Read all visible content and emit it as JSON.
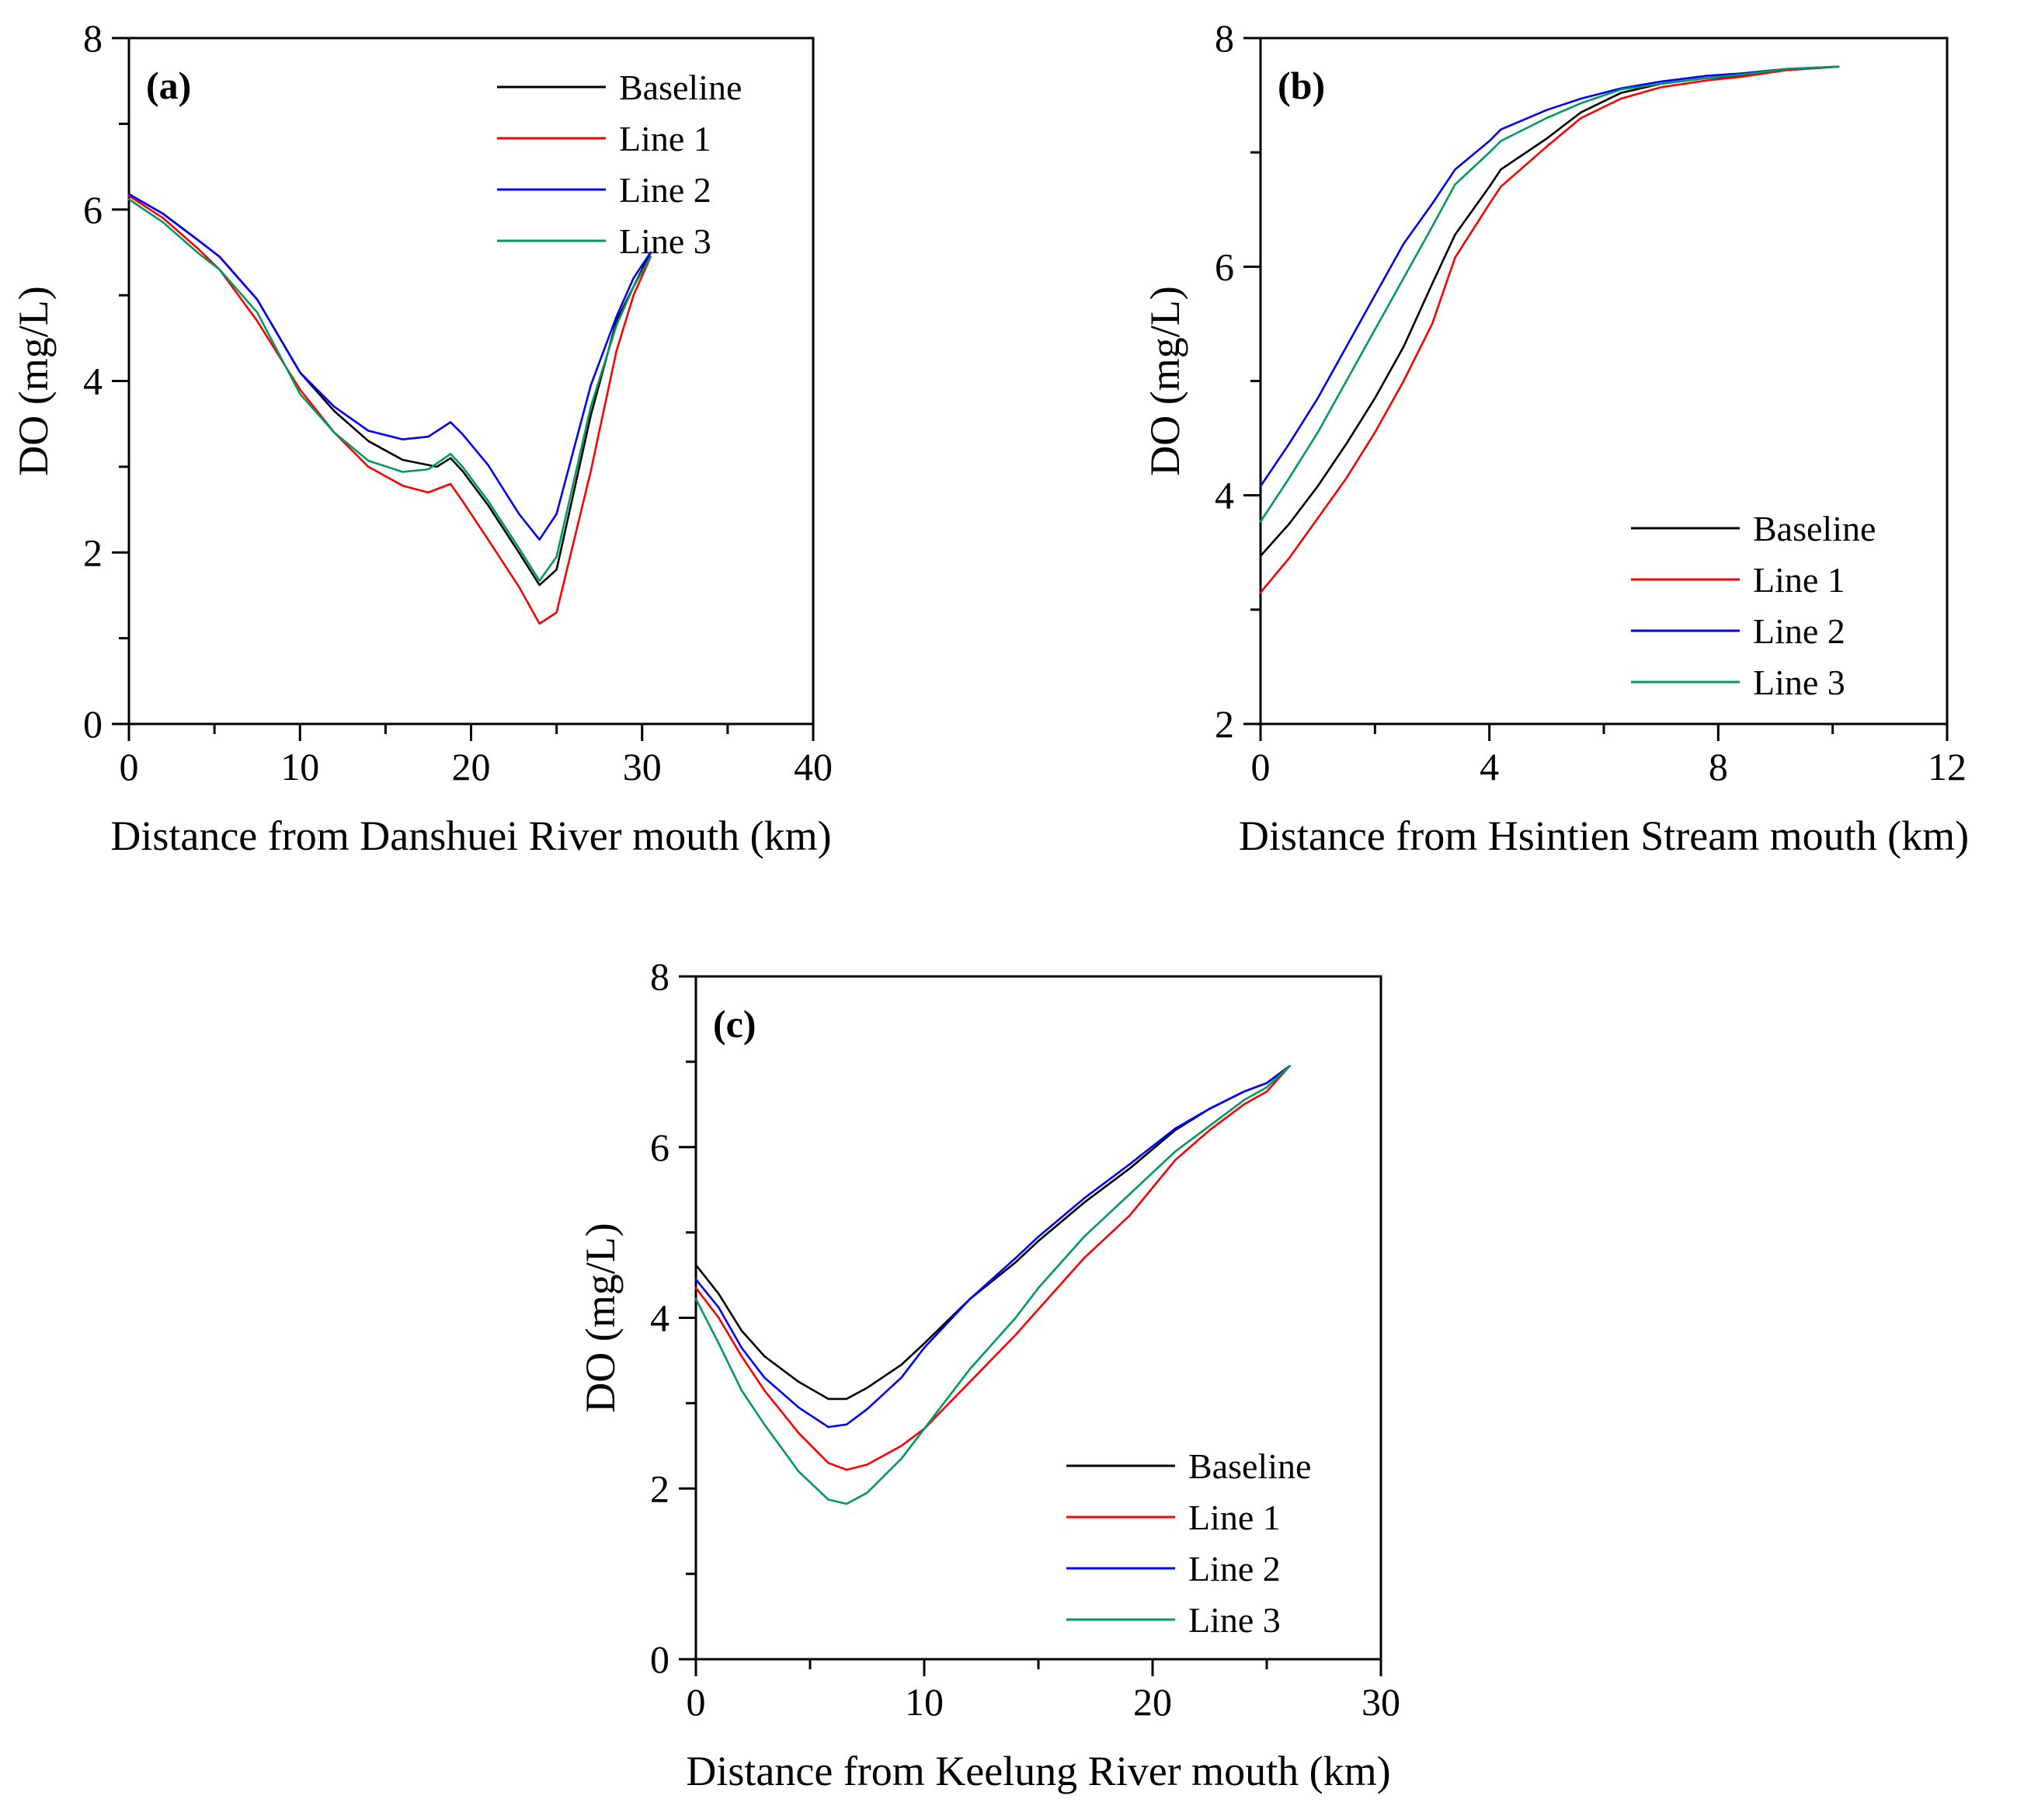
{
  "figure": {
    "legend_placement": "inside",
    "colors": {
      "Baseline": "#000000",
      "Line 1": "#ff0000",
      "Line 2": "#0000ff",
      "Line 3": "#009966"
    }
  },
  "chart_data": [
    {
      "type": "line",
      "panel_tag": "(a)",
      "xlabel": "Distance from Danshuei River mouth (km)",
      "ylabel": "DO (mg/L)",
      "xlim": [
        0,
        40
      ],
      "ylim": [
        0,
        8
      ],
      "x_ticks": [
        0,
        10,
        20,
        30,
        40
      ],
      "y_ticks": [
        0,
        2,
        4,
        6,
        8
      ],
      "x_ticks_minor": [
        5,
        15,
        25,
        35
      ],
      "y_ticks_minor": [
        1,
        3,
        5,
        7
      ],
      "legend_position": "top-right",
      "series": [
        {
          "name": "Baseline",
          "x": [
            0,
            2,
            4,
            5.3,
            7.5,
            10,
            12,
            14,
            16,
            18,
            18.8,
            19.5,
            21,
            22.8,
            24,
            25,
            27,
            28.5,
            29.5,
            30.5
          ],
          "y": [
            6.18,
            5.95,
            5.65,
            5.45,
            4.95,
            4.1,
            3.65,
            3.3,
            3.08,
            3.0,
            3.1,
            2.95,
            2.55,
            2.0,
            1.62,
            1.8,
            3.6,
            4.7,
            5.1,
            5.5
          ]
        },
        {
          "name": "Line 1",
          "x": [
            0,
            2,
            4,
            5.3,
            7.5,
            10,
            12,
            14,
            16,
            17.5,
            18.8,
            19.5,
            21,
            22.8,
            24,
            25,
            27,
            28.5,
            29.5,
            30.5
          ],
          "y": [
            6.16,
            5.9,
            5.55,
            5.3,
            4.7,
            3.9,
            3.4,
            3.0,
            2.78,
            2.7,
            2.8,
            2.6,
            2.15,
            1.6,
            1.17,
            1.3,
            2.95,
            4.35,
            5.0,
            5.45
          ]
        },
        {
          "name": "Line 2",
          "x": [
            0,
            2,
            4,
            5.3,
            7.5,
            10,
            12,
            14,
            16,
            17.5,
            18.8,
            19.5,
            21,
            22.8,
            24,
            25,
            27,
            28.5,
            29.5,
            30.5
          ],
          "y": [
            6.18,
            5.95,
            5.65,
            5.45,
            4.95,
            4.1,
            3.7,
            3.42,
            3.32,
            3.35,
            3.52,
            3.38,
            3.02,
            2.45,
            2.15,
            2.45,
            3.95,
            4.75,
            5.2,
            5.5
          ]
        },
        {
          "name": "Line 3",
          "x": [
            0,
            2,
            4,
            5.3,
            7.5,
            10,
            12,
            14,
            16,
            17.5,
            18.8,
            19.5,
            21,
            22.8,
            24,
            25,
            27,
            28.5,
            29.5,
            30.5
          ],
          "y": [
            6.12,
            5.85,
            5.5,
            5.3,
            4.8,
            3.85,
            3.4,
            3.07,
            2.94,
            2.97,
            3.15,
            3.0,
            2.6,
            2.05,
            1.67,
            1.95,
            3.7,
            4.65,
            5.1,
            5.45
          ]
        }
      ]
    },
    {
      "type": "line",
      "panel_tag": "(b)",
      "xlabel": "Distance from Hsintien Stream mouth (km)",
      "ylabel": "DO (mg/L)",
      "xlim": [
        0,
        12
      ],
      "ylim": [
        2,
        8
      ],
      "x_ticks": [
        0,
        4,
        8,
        12
      ],
      "y_ticks": [
        2,
        4,
        6,
        8
      ],
      "x_ticks_minor": [
        2,
        6,
        10
      ],
      "y_ticks_minor": [
        3,
        5,
        7
      ],
      "legend_position": "bottom-right",
      "series": [
        {
          "name": "Baseline",
          "x": [
            0,
            0.5,
            1,
            1.5,
            2,
            2.5,
            3,
            3.4,
            4,
            4.2,
            5,
            5.6,
            6.3,
            7,
            7.8,
            8.4,
            9.2,
            10.1
          ],
          "y": [
            3.47,
            3.75,
            4.08,
            4.45,
            4.85,
            5.3,
            5.85,
            6.28,
            6.7,
            6.85,
            7.12,
            7.35,
            7.52,
            7.6,
            7.65,
            7.67,
            7.72,
            7.75
          ]
        },
        {
          "name": "Line 1",
          "x": [
            0,
            0.5,
            1,
            1.5,
            2,
            2.5,
            3,
            3.4,
            4,
            4.2,
            5,
            5.6,
            6.3,
            7,
            7.8,
            8.4,
            9.2,
            10.1
          ],
          "y": [
            3.15,
            3.45,
            3.8,
            4.15,
            4.55,
            5.0,
            5.5,
            6.08,
            6.55,
            6.7,
            7.05,
            7.3,
            7.47,
            7.57,
            7.63,
            7.66,
            7.72,
            7.75
          ]
        },
        {
          "name": "Line 2",
          "x": [
            0,
            0.5,
            1,
            1.5,
            2,
            2.5,
            3,
            3.4,
            4,
            4.2,
            5,
            5.6,
            6.3,
            7,
            7.8,
            8.4,
            9.2,
            10.1
          ],
          "y": [
            4.08,
            4.45,
            4.85,
            5.3,
            5.75,
            6.2,
            6.55,
            6.85,
            7.1,
            7.2,
            7.37,
            7.47,
            7.56,
            7.62,
            7.67,
            7.69,
            7.73,
            7.75
          ]
        },
        {
          "name": "Line 3",
          "x": [
            0,
            0.5,
            1,
            1.5,
            2,
            2.5,
            3,
            3.4,
            4,
            4.2,
            5,
            5.6,
            6.3,
            7,
            7.8,
            8.4,
            9.2,
            10.1
          ],
          "y": [
            3.77,
            4.15,
            4.55,
            5.0,
            5.45,
            5.9,
            6.35,
            6.72,
            7.0,
            7.1,
            7.3,
            7.43,
            7.55,
            7.6,
            7.65,
            7.68,
            7.73,
            7.75
          ]
        }
      ]
    },
    {
      "type": "line",
      "panel_tag": "(c)",
      "xlabel": "Distance from Keelung River mouth (km)",
      "ylabel": "DO (mg/L)",
      "xlim": [
        0,
        30
      ],
      "ylim": [
        0,
        8
      ],
      "x_ticks": [
        0,
        10,
        20,
        30
      ],
      "y_ticks": [
        0,
        2,
        4,
        6,
        8
      ],
      "x_ticks_minor": [
        5,
        15,
        25
      ],
      "y_ticks_minor": [
        1,
        3,
        5,
        7
      ],
      "legend_position": "bottom-right",
      "series": [
        {
          "name": "Baseline",
          "x": [
            0,
            1,
            2,
            3,
            4.5,
            5.8,
            6.6,
            7.5,
            9,
            10,
            12,
            14,
            15,
            17,
            19,
            21,
            22.5,
            24,
            25,
            26
          ],
          "y": [
            4.62,
            4.28,
            3.85,
            3.55,
            3.25,
            3.05,
            3.05,
            3.18,
            3.45,
            3.7,
            4.22,
            4.65,
            4.9,
            5.35,
            5.75,
            6.2,
            6.45,
            6.65,
            6.75,
            6.95
          ]
        },
        {
          "name": "Line 1",
          "x": [
            0,
            1,
            2,
            3,
            4.5,
            5.8,
            6.6,
            7.5,
            9,
            10,
            12,
            14,
            15,
            17,
            19,
            21,
            22.5,
            24,
            25,
            26
          ],
          "y": [
            4.35,
            4.0,
            3.55,
            3.15,
            2.65,
            2.3,
            2.22,
            2.28,
            2.5,
            2.7,
            3.25,
            3.8,
            4.1,
            4.7,
            5.2,
            5.85,
            6.2,
            6.5,
            6.65,
            6.95
          ]
        },
        {
          "name": "Line 2",
          "x": [
            0,
            1,
            2,
            3,
            4.5,
            5.8,
            6.6,
            7.5,
            9,
            10,
            12,
            14,
            15,
            17,
            19,
            21,
            22.5,
            24,
            25,
            26
          ],
          "y": [
            4.45,
            4.12,
            3.65,
            3.3,
            2.95,
            2.72,
            2.75,
            2.93,
            3.3,
            3.65,
            4.22,
            4.7,
            4.95,
            5.4,
            5.8,
            6.22,
            6.45,
            6.65,
            6.75,
            6.95
          ]
        },
        {
          "name": "Line 3",
          "x": [
            0,
            1,
            2,
            3,
            4.5,
            5.8,
            6.6,
            7.5,
            9,
            10,
            12,
            14,
            15,
            17,
            19,
            21,
            22.5,
            24,
            25,
            26
          ],
          "y": [
            4.22,
            3.7,
            3.15,
            2.75,
            2.2,
            1.87,
            1.82,
            1.95,
            2.35,
            2.7,
            3.4,
            4.0,
            4.35,
            4.95,
            5.45,
            5.95,
            6.25,
            6.55,
            6.7,
            6.95
          ]
        }
      ]
    }
  ]
}
